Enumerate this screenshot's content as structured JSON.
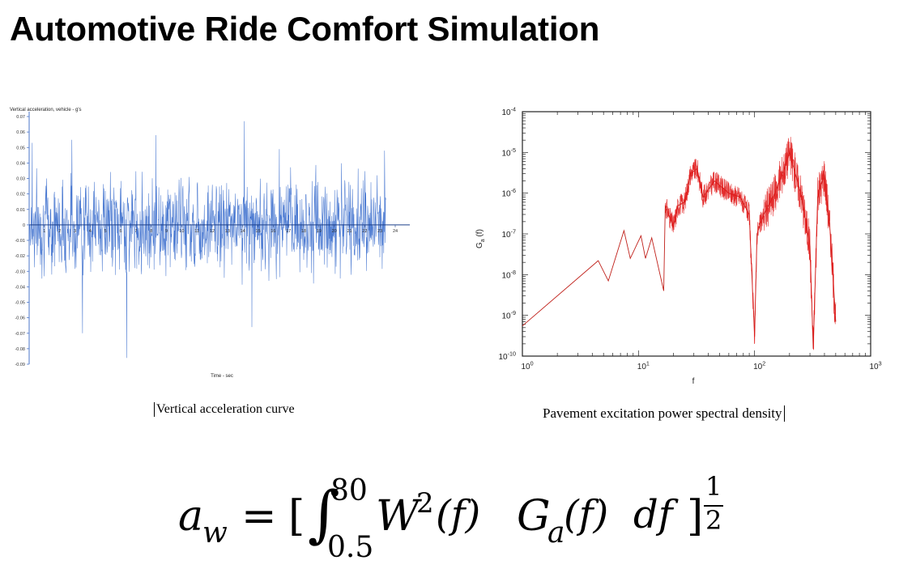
{
  "slide": {
    "title": "Automotive Ride Comfort Simulation"
  },
  "captions": {
    "acceleration": "Vertical acceleration curve",
    "psd": "Pavement excitation power spectral density"
  },
  "formula": {
    "lhs": "a",
    "lhs_sub": "w",
    "equals": "=",
    "open_bracket": "[",
    "integral": "∫",
    "upper_limit": "80",
    "lower_limit": "0.5",
    "weight_fn": "W",
    "weight_exp": "2",
    "weight_arg": "(f)",
    "psd_fn": "G",
    "psd_sub": "a",
    "psd_arg": "(f)",
    "differential": "df",
    "close_bracket": "]",
    "exp_num": "1",
    "exp_den": "2"
  },
  "chart_data": [
    {
      "type": "line",
      "title": "Vertical acceleration, vehicle - g's",
      "xlabel": "Time - sec",
      "ylabel": "",
      "xlim": [
        0,
        24
      ],
      "ylim": [
        -0.09,
        0.07
      ],
      "x_ticks": [
        1,
        2,
        3,
        4,
        5,
        6,
        7,
        8,
        9,
        10,
        11,
        12,
        13,
        14,
        15,
        16,
        17,
        18,
        19,
        20,
        21,
        22,
        23,
        24
      ],
      "y_ticks": [
        0.07,
        0.06,
        0.05,
        0.04,
        0.03,
        0.02,
        0.01,
        0,
        -0.01,
        -0.02,
        -0.03,
        -0.04,
        -0.05,
        -0.06,
        -0.07,
        -0.08,
        -0.09
      ],
      "y_tick_labels": [
        "0.07",
        "0.06",
        "0.05",
        "0.04",
        "0.03",
        "0.02",
        "0.01",
        "0",
        "-0.01",
        "-0.02",
        "-0.03",
        "-0.04",
        "-0.05",
        "-0.06",
        "-0.07",
        "-0.08",
        "-0.09"
      ],
      "color": "#2a62c9",
      "series_note": "dense random vibration signal",
      "peaks": [
        {
          "x": 0.2,
          "y": 0.053
        },
        {
          "x": 2.8,
          "y": 0.055
        },
        {
          "x": 3.5,
          "y": -0.07
        },
        {
          "x": 6.4,
          "y": -0.086
        },
        {
          "x": 8.3,
          "y": 0.058
        },
        {
          "x": 14.1,
          "y": 0.067
        },
        {
          "x": 14.6,
          "y": -0.066
        },
        {
          "x": 16.4,
          "y": 0.049
        },
        {
          "x": 23.3,
          "y": 0.048
        }
      ]
    },
    {
      "type": "line",
      "xlabel": "f",
      "ylabel": "G_a (f)",
      "x_scale": "log",
      "y_scale": "log",
      "xlim": [
        1,
        1000
      ],
      "ylim": [
        1e-10,
        0.0001
      ],
      "x_tick_labels": [
        "10^0",
        "10^1",
        "10^2",
        "10^3"
      ],
      "y_tick_labels": [
        "10^-4",
        "10^-5",
        "10^-6",
        "10^-7",
        "10^-8",
        "10^-9",
        "10^-10"
      ],
      "color": "#c0201a",
      "grid": false,
      "x": [
        1,
        4.5,
        5.5,
        7.5,
        8.5,
        10.5,
        11.5,
        13,
        16.5,
        17,
        20,
        22,
        25,
        28,
        32,
        36,
        45,
        60,
        75,
        90,
        100,
        105,
        120,
        150,
        180,
        200,
        250,
        300,
        320,
        350,
        400,
        450,
        500
      ],
      "y": [
        5.5e-10,
        2.2e-08,
        7e-09,
        1.2e-07,
        2.5e-08,
        9e-08,
        2.5e-08,
        8e-08,
        4e-09,
        5e-07,
        1.5e-07,
        5e-07,
        6e-07,
        3e-06,
        4e-06,
        8e-07,
        2e-06,
        1e-06,
        8e-07,
        3e-07,
        3e-10,
        1e-07,
        3e-07,
        1e-06,
        4e-06,
        1e-05,
        1e-06,
        5e-08,
        1.5e-10,
        8e-07,
        3e-06,
        1e-07,
        7e-10
      ]
    }
  ]
}
